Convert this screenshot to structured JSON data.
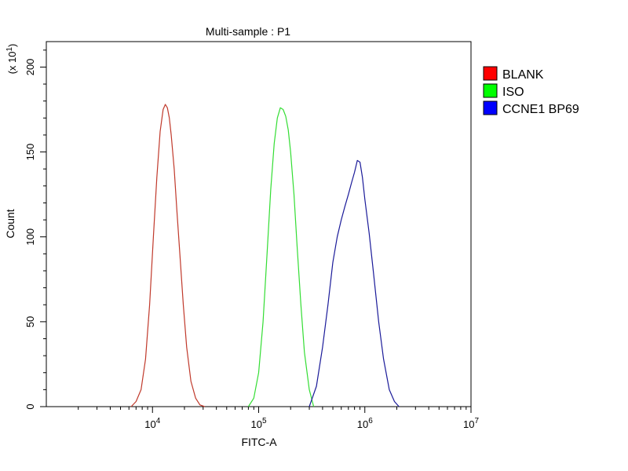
{
  "chart_data": {
    "type": "line",
    "title": "Multi-sample : P1",
    "xlabel": "FITC-A",
    "ylabel": "Count",
    "y_multiplier": "(x 10",
    "y_multiplier_exp": "1",
    "y_multiplier_close": ")",
    "x_scale": "log",
    "xlim": [
      1000,
      10000000
    ],
    "ylim": [
      0,
      215
    ],
    "x_ticks": [
      {
        "base": "10",
        "exp": "4",
        "value": 10000
      },
      {
        "base": "10",
        "exp": "5",
        "value": 100000
      },
      {
        "base": "10",
        "exp": "6",
        "value": 1000000
      },
      {
        "base": "10",
        "exp": "7",
        "value": 10000000
      }
    ],
    "y_ticks": [
      {
        "label": "0",
        "value": 0
      },
      {
        "label": "50",
        "value": 50
      },
      {
        "label": "100",
        "value": 100
      },
      {
        "label": "150",
        "value": 150
      },
      {
        "label": "200",
        "value": 200
      }
    ],
    "grid": false,
    "legend_position": "top-right",
    "series": [
      {
        "name": "BLANK",
        "color": "#c0392b",
        "swatch": "#ff0000",
        "x": [
          6300,
          7000,
          7800,
          8600,
          9400,
          10200,
          11000,
          11800,
          12600,
          13200,
          13800,
          14400,
          15000,
          16000,
          17000,
          18200,
          19500,
          21000,
          23000,
          25500,
          28000,
          31000
        ],
        "y": [
          0,
          3,
          10,
          28,
          60,
          100,
          135,
          162,
          175,
          178,
          176,
          170,
          160,
          140,
          115,
          88,
          60,
          35,
          15,
          5,
          1,
          0
        ]
      },
      {
        "name": "ISO",
        "color": "#33dd33",
        "swatch": "#00ff00",
        "x": [
          80000,
          90000,
          100000,
          110000,
          120000,
          130000,
          140000,
          150000,
          160000,
          170000,
          180000,
          190000,
          200000,
          215000,
          230000,
          250000,
          270000,
          300000,
          330000
        ],
        "y": [
          0,
          5,
          20,
          50,
          90,
          128,
          155,
          170,
          176,
          175,
          171,
          163,
          150,
          125,
          95,
          60,
          32,
          10,
          0
        ]
      },
      {
        "name": "CCNE1 BP69",
        "color": "#1a1a99",
        "swatch": "#0000ff",
        "x": [
          300000,
          350000,
          400000,
          450000,
          500000,
          550000,
          600000,
          650000,
          700000,
          750000,
          800000,
          850000,
          900000,
          950000,
          1000000,
          1100000,
          1200000,
          1350000,
          1500000,
          1700000,
          1900000,
          2100000
        ],
        "y": [
          0,
          12,
          35,
          60,
          85,
          100,
          110,
          118,
          125,
          132,
          138,
          145,
          144,
          135,
          122,
          102,
          80,
          50,
          28,
          10,
          3,
          0
        ]
      }
    ]
  }
}
